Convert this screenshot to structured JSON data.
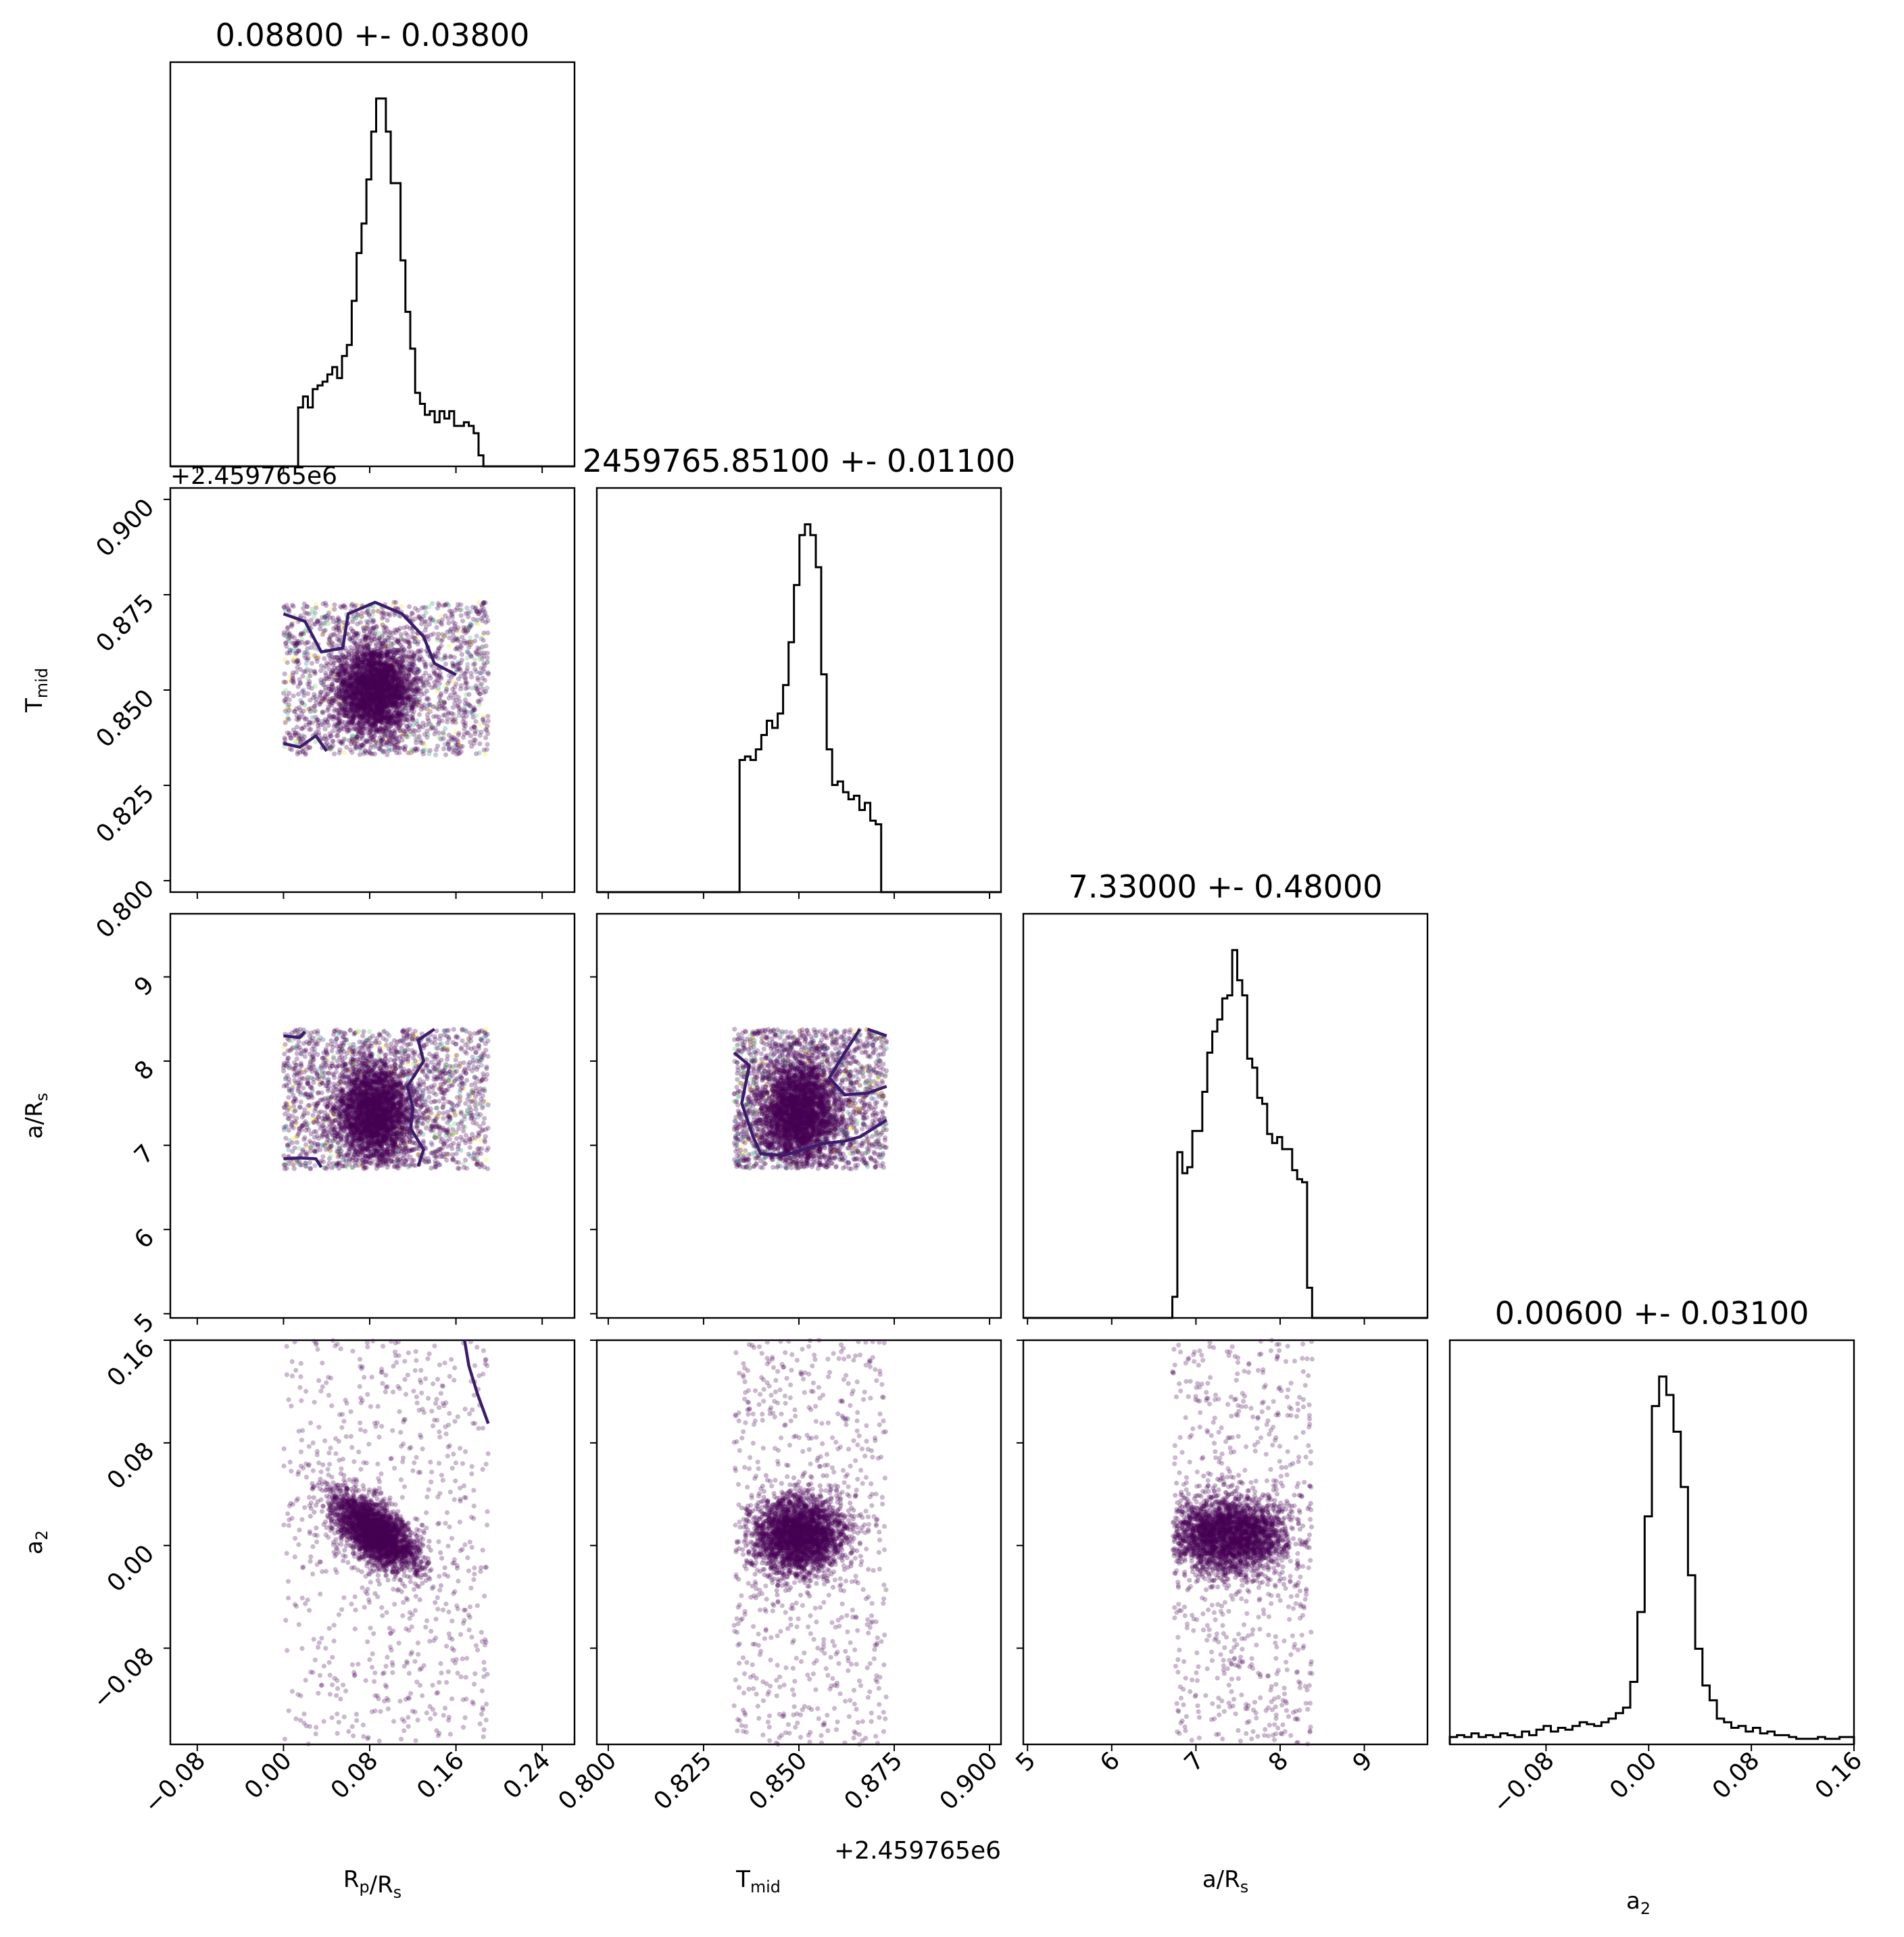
{
  "chart_data": {
    "type": "scatter",
    "subtype": "corner-plot",
    "colors": {
      "scatter": "#440154",
      "contour": "#3b1c6b",
      "halo": [
        "#fde725",
        "#5ec962",
        "#21918c",
        "#3b528b"
      ],
      "histogram": "#000000"
    },
    "parameters": [
      {
        "id": "rp_rs",
        "label": "R",
        "label_sub": "p",
        "label_mid": "/R",
        "label_sub2": "s",
        "title": "0.08800 +- 0.03800",
        "center": 0.088,
        "range": [
          -0.105,
          0.27
        ],
        "ticks": [
          -0.08,
          0.0,
          0.08,
          0.16,
          0.24
        ],
        "tick_labels": [
          "−0.08",
          "0.00",
          "0.08",
          "0.16",
          "0.24"
        ],
        "offset_text": "",
        "prior_range": [
          0.0,
          0.19
        ]
      },
      {
        "id": "t_mid",
        "label": "T",
        "label_sub": "mid",
        "label_mid": "",
        "label_sub2": "",
        "title": "2459765.85100 +- 0.01100",
        "center": 0.851,
        "range": [
          0.797,
          0.903
        ],
        "ticks": [
          0.8,
          0.825,
          0.85,
          0.875,
          0.9
        ],
        "tick_labels": [
          "0.800",
          "0.825",
          "0.850",
          "0.875",
          "0.900"
        ],
        "offset_text": "+2.459765e6",
        "prior_range": [
          0.833,
          0.873
        ]
      },
      {
        "id": "a_rs",
        "label": "a/R",
        "label_sub": "s",
        "label_mid": "",
        "label_sub2": "",
        "title": "7.33000 +- 0.48000",
        "center": 7.33,
        "range": [
          4.95,
          9.75
        ],
        "ticks": [
          5,
          6,
          7,
          8,
          9
        ],
        "tick_labels": [
          "5",
          "6",
          "7",
          "8",
          "9"
        ],
        "offset_text": "",
        "prior_range": [
          6.72,
          8.38
        ]
      },
      {
        "id": "a2",
        "label": "a",
        "label_sub": "2",
        "label_mid": "",
        "label_sub2": "",
        "title": "0.00600 +- 0.03100",
        "center": 0.006,
        "range": [
          -0.155,
          0.16
        ],
        "ticks": [
          -0.08,
          0.0,
          0.08,
          0.16
        ],
        "tick_labels": [
          "−0.08",
          "0.00",
          "0.08",
          "0.16"
        ],
        "offset_text": "",
        "prior_range": [
          -0.155,
          0.16
        ]
      }
    ],
    "histograms": [
      {
        "param": "rp_rs",
        "edges_range": [
          0.0,
          0.19
        ],
        "counts": [
          0.0,
          0.0,
          0.0,
          0.16,
          0.19,
          0.16,
          0.21,
          0.22,
          0.23,
          0.25,
          0.27,
          0.24,
          0.3,
          0.33,
          0.45,
          0.58,
          0.66,
          0.78,
          0.91,
          1.0,
          1.0,
          0.91,
          0.77,
          0.77,
          0.56,
          0.42,
          0.32,
          0.2,
          0.17,
          0.14,
          0.15,
          0.12,
          0.15,
          0.13,
          0.15,
          0.11,
          0.11,
          0.12,
          0.11,
          0.09,
          0.03,
          0.0
        ]
      },
      {
        "param": "t_mid",
        "edges_range": [
          0.833,
          0.873
        ],
        "counts": [
          0.0,
          0.37,
          0.38,
          0.37,
          0.4,
          0.44,
          0.48,
          0.46,
          0.5,
          0.58,
          0.7,
          0.86,
          1.0,
          1.03,
          1.0,
          0.91,
          0.61,
          0.4,
          0.3,
          0.31,
          0.28,
          0.26,
          0.27,
          0.23,
          0.25,
          0.2,
          0.19,
          0.0
        ]
      },
      {
        "param": "a_rs",
        "edges_range": [
          6.72,
          8.38
        ],
        "counts": [
          0.07,
          0.55,
          0.48,
          0.5,
          0.62,
          0.62,
          0.75,
          0.88,
          0.95,
          0.99,
          1.06,
          1.07,
          1.22,
          1.12,
          1.07,
          0.86,
          0.83,
          0.73,
          0.71,
          0.61,
          0.58,
          0.6,
          0.56,
          0.56,
          0.49,
          0.46,
          0.45,
          0.1
        ]
      },
      {
        "param": "a2",
        "edges_range": [
          -0.155,
          0.16
        ],
        "counts": [
          0.02,
          0.025,
          0.02,
          0.03,
          0.02,
          0.025,
          0.02,
          0.03,
          0.025,
          0.02,
          0.035,
          0.025,
          0.04,
          0.05,
          0.035,
          0.045,
          0.04,
          0.05,
          0.06,
          0.055,
          0.05,
          0.06,
          0.07,
          0.085,
          0.1,
          0.17,
          0.36,
          0.62,
          0.92,
          1.0,
          0.95,
          0.85,
          0.7,
          0.46,
          0.26,
          0.16,
          0.12,
          0.07,
          0.06,
          0.045,
          0.05,
          0.035,
          0.045,
          0.03,
          0.035,
          0.025,
          0.025,
          0.02,
          0.015,
          0.015,
          0.015,
          0.02,
          0.015,
          0.015,
          0.02,
          0.02
        ]
      }
    ],
    "scatter_pairs": [
      {
        "x": "rp_rs",
        "y": "t_mid",
        "core": [
          0.085,
          0.85
        ],
        "core_spread": [
          0.018,
          0.006
        ],
        "correlation": 0.0,
        "halo": true,
        "contour": true
      },
      {
        "x": "rp_rs",
        "y": "a_rs",
        "core": [
          0.085,
          7.4
        ],
        "core_spread": [
          0.018,
          0.3
        ],
        "correlation": 0.0,
        "halo": true,
        "contour": true
      },
      {
        "x": "t_mid",
        "y": "a_rs",
        "core": [
          0.85,
          7.4
        ],
        "core_spread": [
          0.005,
          0.3
        ],
        "correlation": 0.0,
        "halo": true,
        "contour": true
      },
      {
        "x": "rp_rs",
        "y": "a2",
        "core": [
          0.085,
          0.01
        ],
        "core_spread": [
          0.02,
          0.015
        ],
        "correlation": -0.6,
        "halo": false,
        "contour": true
      },
      {
        "x": "t_mid",
        "y": "a2",
        "core": [
          0.85,
          0.008
        ],
        "core_spread": [
          0.006,
          0.015
        ],
        "correlation": 0.0,
        "halo": false,
        "contour": false
      },
      {
        "x": "a_rs",
        "y": "a2",
        "core": [
          7.4,
          0.008
        ],
        "core_spread": [
          0.35,
          0.015
        ],
        "correlation": 0.0,
        "halo": false,
        "contour": false
      }
    ],
    "contours": [
      {
        "x": "rp_rs",
        "y": "t_mid",
        "paths": [
          [
            [
              0.0,
              0.87
            ],
            [
              0.02,
              0.868
            ],
            [
              0.035,
              0.86
            ],
            [
              0.055,
              0.861
            ],
            [
              0.06,
              0.87
            ],
            [
              0.085,
              0.873
            ],
            [
              0.11,
              0.87
            ],
            [
              0.13,
              0.864
            ],
            [
              0.14,
              0.857
            ],
            [
              0.16,
              0.854
            ]
          ],
          [
            [
              0.0,
              0.836
            ],
            [
              0.015,
              0.835
            ],
            [
              0.03,
              0.838
            ],
            [
              0.04,
              0.834
            ]
          ]
        ]
      },
      {
        "x": "rp_rs",
        "y": "a_rs",
        "paths": [
          [
            [
              0.0,
              8.3
            ],
            [
              0.015,
              8.28
            ],
            [
              0.02,
              8.35
            ]
          ],
          [
            [
              0.0,
              6.84
            ],
            [
              0.015,
              6.85
            ],
            [
              0.03,
              6.84
            ],
            [
              0.035,
              6.74
            ]
          ],
          [
            [
              0.14,
              8.38
            ],
            [
              0.125,
              8.25
            ],
            [
              0.13,
              8.0
            ],
            [
              0.115,
              7.7
            ],
            [
              0.12,
              7.45
            ],
            [
              0.118,
              7.2
            ],
            [
              0.13,
              6.95
            ],
            [
              0.125,
              6.75
            ]
          ]
        ]
      },
      {
        "x": "t_mid",
        "y": "a_rs",
        "paths": [
          [
            [
              0.873,
              8.3
            ],
            [
              0.868,
              8.38
            ]
          ],
          [
            [
              0.866,
              8.38
            ],
            [
              0.862,
              8.1
            ],
            [
              0.858,
              7.8
            ],
            [
              0.862,
              7.6
            ],
            [
              0.868,
              7.62
            ],
            [
              0.873,
              7.7
            ]
          ],
          [
            [
              0.833,
              8.1
            ],
            [
              0.837,
              7.95
            ],
            [
              0.835,
              7.5
            ],
            [
              0.838,
              7.1
            ],
            [
              0.84,
              6.9
            ],
            [
              0.846,
              6.88
            ],
            [
              0.852,
              6.96
            ],
            [
              0.856,
              7.02
            ],
            [
              0.862,
              7.05
            ],
            [
              0.866,
              7.1
            ],
            [
              0.873,
              7.3
            ]
          ]
        ]
      },
      {
        "x": "rp_rs",
        "y": "a2",
        "paths": [
          [
            [
              0.168,
              0.16
            ],
            [
              0.172,
              0.14
            ],
            [
              0.18,
              0.118
            ],
            [
              0.19,
              0.095
            ]
          ]
        ]
      }
    ]
  }
}
